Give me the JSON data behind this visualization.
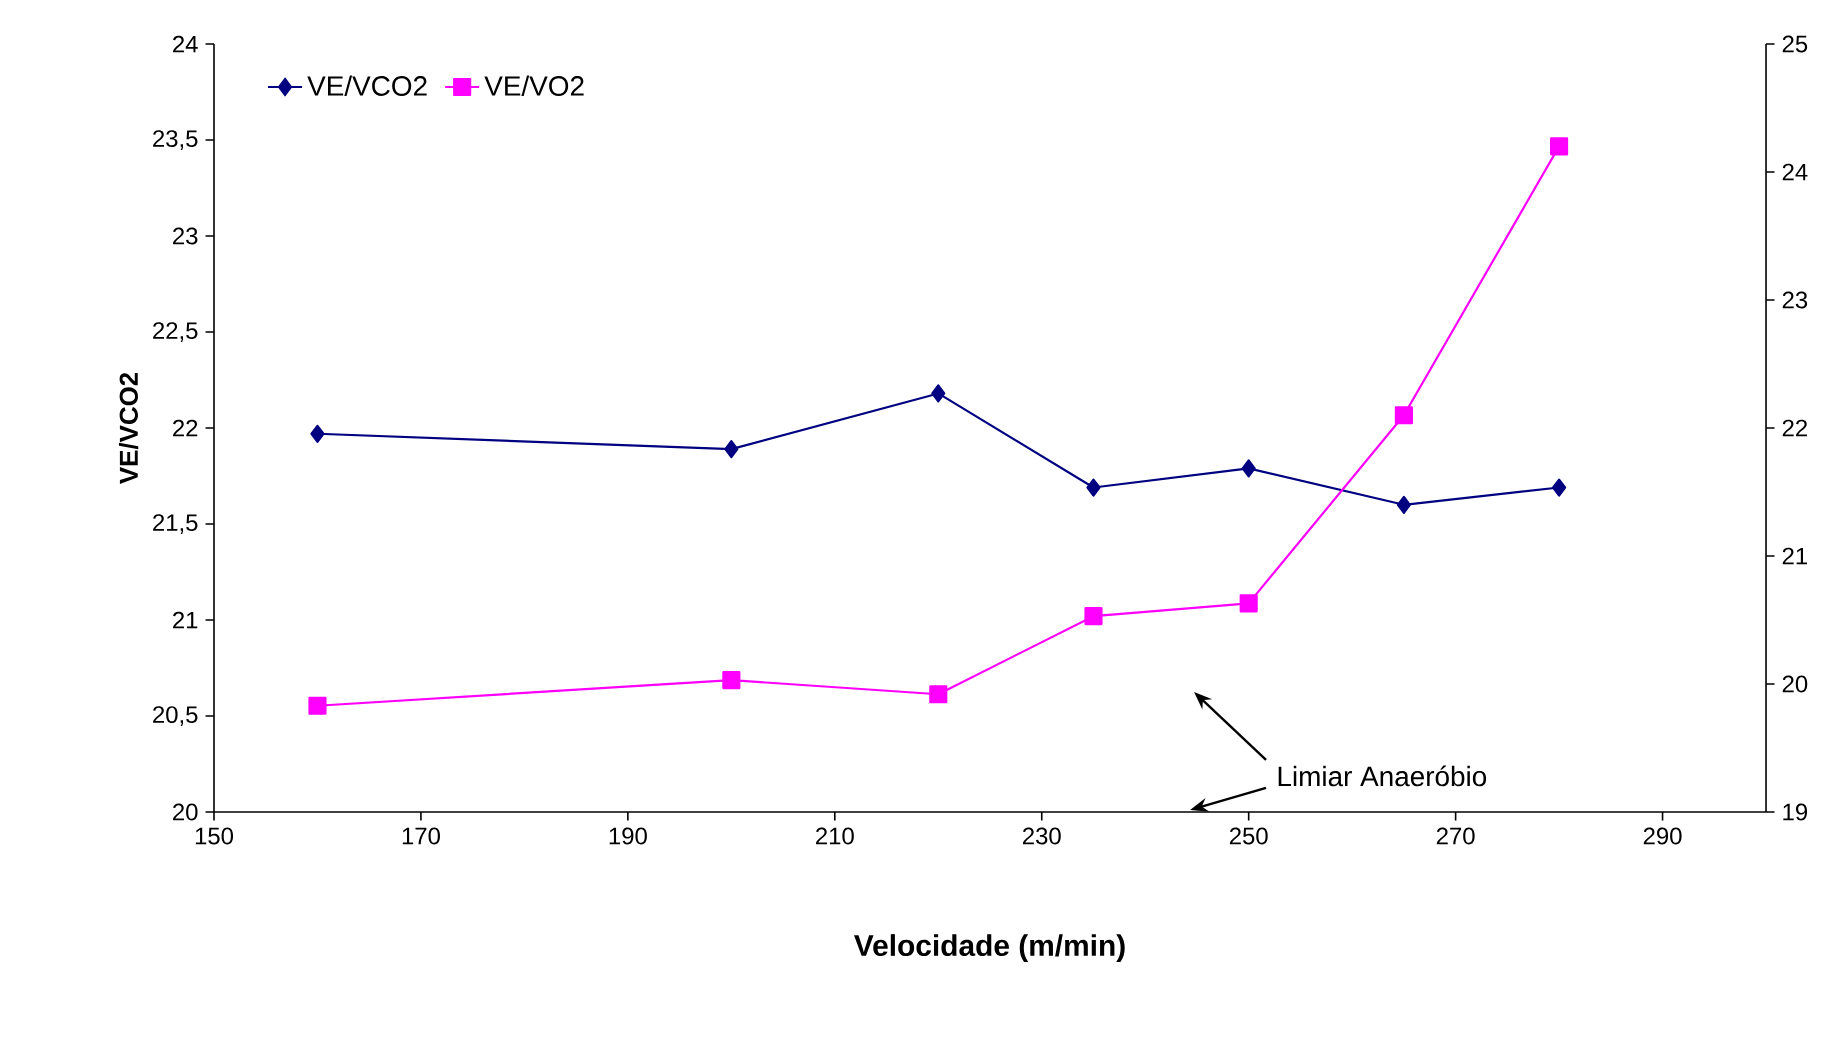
{
  "chart_data": {
    "type": "line",
    "xlabel": "Velocidade (m/min)",
    "ylabel": "VE/VCO2",
    "x": [
      160,
      200,
      220,
      235,
      250,
      265,
      280
    ],
    "series": [
      {
        "name": "VE/VCO2",
        "color": "#000080",
        "marker": "diamond",
        "values": [
          21.97,
          21.89,
          22.18,
          21.69,
          21.79,
          21.6,
          21.69
        ]
      },
      {
        "name": "VE/VO2",
        "color": "#ff00ff",
        "marker": "square",
        "axis": "y2",
        "values": [
          19.83,
          20.03,
          19.92,
          20.53,
          20.63,
          22.1,
          24.2
        ]
      }
    ],
    "xlim": [
      150,
      300
    ],
    "xticks": [
      150,
      170,
      190,
      210,
      230,
      250,
      270,
      290
    ],
    "ylim": [
      20,
      24
    ],
    "yticks": [
      20,
      {
        "value": 20.5,
        "label": "20,5"
      },
      21,
      {
        "value": 21.5,
        "label": "21,5"
      },
      22,
      {
        "value": 22.5,
        "label": "22,5"
      },
      23,
      {
        "value": 23.5,
        "label": "23,5"
      },
      24
    ],
    "y2lim": [
      19,
      25
    ],
    "y2ticks": [
      19,
      20,
      21,
      22,
      23,
      24,
      25
    ],
    "annotations": [
      "Limiar Anaeróbio"
    ],
    "legend": "top left",
    "grid": false,
    "line_style": "solid"
  }
}
